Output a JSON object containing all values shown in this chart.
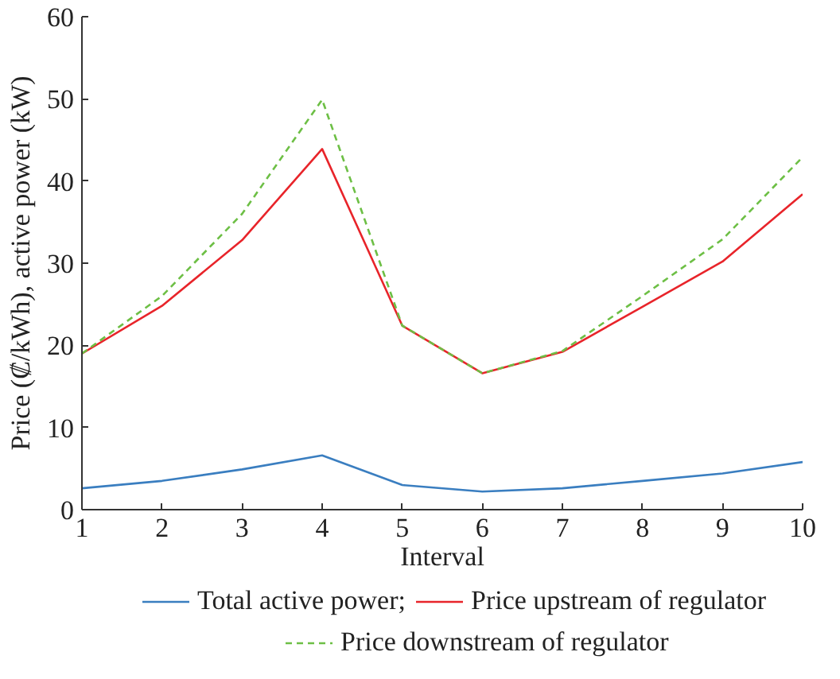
{
  "chart_data": {
    "type": "line",
    "xlabel": "Interval",
    "ylabel": "Price (₡/kWh), active power (kW)",
    "x": [
      1,
      2,
      3,
      4,
      5,
      6,
      7,
      8,
      9,
      10
    ],
    "series": [
      {
        "name": "Total active power;",
        "color": "#3a7ec0",
        "values": [
          2.6,
          3.5,
          4.9,
          6.6,
          3.0,
          2.2,
          2.6,
          3.5,
          4.4,
          5.8
        ]
      },
      {
        "name": "Price upstream of regulator",
        "color": "#e8242a",
        "values": [
          19.0,
          24.8,
          32.8,
          43.9,
          22.4,
          16.6,
          19.2,
          24.7,
          30.2,
          38.4
        ]
      },
      {
        "name": "Price downstream of regulator",
        "color": "#6dbf45",
        "line_style": "dashed",
        "values": [
          19.0,
          26.0,
          36.0,
          49.9,
          22.4,
          16.6,
          19.3,
          26.0,
          32.9,
          42.9
        ]
      }
    ],
    "xlim": [
      1,
      10
    ],
    "xticks": [
      1,
      2,
      3,
      4,
      5,
      6,
      7,
      8,
      9,
      10
    ],
    "ylim": [
      0,
      60
    ],
    "yticks": [
      0,
      10,
      20,
      30,
      40,
      50,
      60
    ],
    "grid": false,
    "legend": "bottom",
    "line_style": "solid"
  }
}
